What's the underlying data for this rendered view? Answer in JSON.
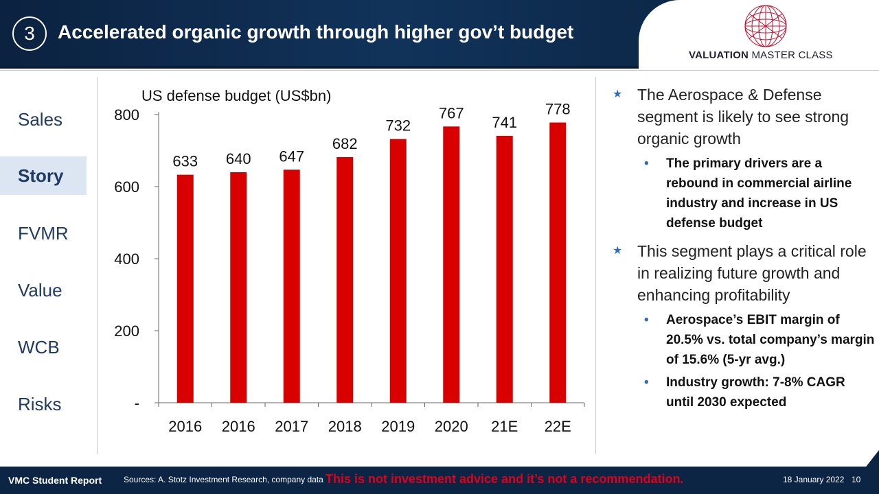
{
  "header": {
    "number": "3",
    "title": "Accelerated organic growth through higher gov’t budget",
    "logo_text_bold": "VALUATION",
    "logo_text_light": "MASTER CLASS"
  },
  "nav": {
    "items": [
      {
        "label": "Sales"
      },
      {
        "label": "Story"
      },
      {
        "label": "FVMR"
      },
      {
        "label": "Value"
      },
      {
        "label": "WCB"
      },
      {
        "label": "Risks"
      }
    ],
    "active": "Story"
  },
  "chart_data": {
    "type": "bar",
    "title": "US defense budget (US$bn)",
    "categories": [
      "2016",
      "2016",
      "2017",
      "2018",
      "2019",
      "2020",
      "21E",
      "22E"
    ],
    "values": [
      633,
      640,
      647,
      682,
      732,
      767,
      741,
      778
    ],
    "ylim": [
      0,
      800
    ],
    "yticks": [
      {
        "value": 0,
        "label": "-"
      },
      {
        "value": 200,
        "label": "200"
      },
      {
        "value": 400,
        "label": "400"
      },
      {
        "value": 600,
        "label": "600"
      },
      {
        "value": 800,
        "label": "800"
      }
    ],
    "bar_color": "#d90000",
    "grid": false
  },
  "bullets": [
    {
      "text": "The Aerospace & Defense segment is likely to see strong organic growth",
      "sub": [
        "The primary drivers are a rebound in commercial airline industry and increase in US defense budget"
      ]
    },
    {
      "text": "This segment plays a critical role in realizing future growth and enhancing profitability",
      "sub": [
        "Aerospace’s EBIT margin of 20.5% vs. total company’s margin of 15.6% (5-yr avg.)",
        "Industry growth: 7-8% CAGR until 2030 expected"
      ]
    }
  ],
  "footer": {
    "report": "VMC Student Report",
    "sources": "Sources: A. Stotz Investment Research, company data",
    "disclaimer": "This is not investment advice and it’s not a recommendation.",
    "date": "18 January 2022",
    "page": "10"
  },
  "colors": {
    "header_bg": "#0d2544",
    "nav_text": "#1f3b64",
    "nav_active_bg": "#dce6f2",
    "bullet_accent": "#2f6fb5",
    "disclaimer": "#e0001b"
  }
}
